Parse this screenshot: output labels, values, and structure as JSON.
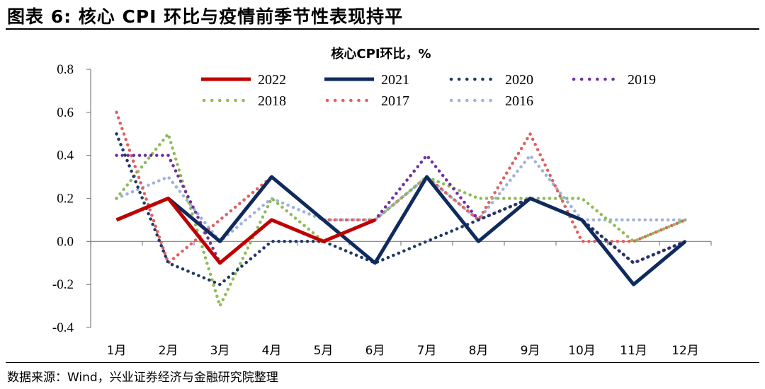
{
  "figure": {
    "title": "图表 6: 核心 CPI 环比与疫情前季节性表现持平",
    "source": "数据来源：Wind，兴业证券经济与金融研究院整理"
  },
  "chart_data": {
    "type": "line",
    "title": "核心CPI环比，%",
    "xlabel": "",
    "ylabel": "",
    "categories": [
      "1月",
      "2月",
      "3月",
      "4月",
      "5月",
      "6月",
      "7月",
      "8月",
      "9月",
      "10月",
      "11月",
      "12月"
    ],
    "ylim": [
      -0.4,
      0.8
    ],
    "yticks": [
      "0.8",
      "0.6",
      "0.4",
      "0.2",
      "0.0",
      "-0.2",
      "-0.4"
    ],
    "grid": false,
    "legend_position": "top",
    "series": [
      {
        "name": "2022",
        "color": "#c00000",
        "style": "solid",
        "values": [
          0.1,
          0.2,
          -0.1,
          0.1,
          0.0,
          0.1,
          null,
          null,
          null,
          null,
          null,
          null
        ]
      },
      {
        "name": "2021",
        "color": "#0f2a5c",
        "style": "solid",
        "values": [
          0.1,
          0.2,
          0.0,
          0.3,
          0.1,
          -0.1,
          0.3,
          0.0,
          0.2,
          0.1,
          -0.2,
          0.0
        ]
      },
      {
        "name": "2020",
        "color": "#1f3864",
        "style": "dotted",
        "values": [
          0.5,
          -0.1,
          -0.2,
          0.0,
          0.0,
          -0.1,
          0.0,
          0.1,
          0.2,
          0.1,
          -0.1,
          0.0
        ]
      },
      {
        "name": "2019",
        "color": "#7030a0",
        "style": "dotted",
        "values": [
          0.4,
          0.4,
          -0.1,
          0.1,
          0.0,
          0.1,
          0.4,
          0.1,
          0.2,
          0.1,
          -0.1,
          0.0
        ]
      },
      {
        "name": "2018",
        "color": "#8fbc5a",
        "style": "dotted",
        "values": [
          0.2,
          0.5,
          -0.3,
          0.2,
          0.0,
          0.1,
          0.3,
          0.2,
          0.2,
          0.2,
          0.0,
          0.1
        ]
      },
      {
        "name": "2017",
        "color": "#e06060",
        "style": "dotted",
        "values": [
          0.6,
          -0.1,
          0.1,
          0.3,
          0.1,
          0.1,
          0.3,
          0.1,
          0.5,
          0.0,
          0.0,
          0.1
        ]
      },
      {
        "name": "2016",
        "color": "#9db3d9",
        "style": "dotted",
        "values": [
          0.2,
          0.3,
          0.0,
          0.2,
          0.1,
          0.1,
          0.3,
          0.1,
          0.4,
          0.1,
          0.1,
          0.1
        ]
      }
    ]
  }
}
